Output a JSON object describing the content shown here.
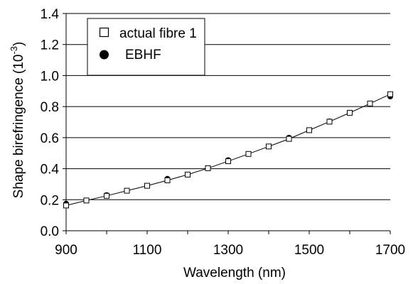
{
  "chart_data": {
    "type": "scatter",
    "title": "",
    "xlabel": "Wavelength (nm)",
    "ylabel_main": "Shape birefringence (10",
    "ylabel_exp": "-3",
    "ylabel_close": ")",
    "xlim": [
      900,
      1700
    ],
    "ylim": [
      0,
      1.4
    ],
    "xticks": [
      "900",
      "1100",
      "1300",
      "1500",
      "1700"
    ],
    "yticks": [
      "0.0",
      "0.2",
      "0.4",
      "0.6",
      "0.8",
      "1.0",
      "1.2",
      "1.4"
    ],
    "grid": "horizontal",
    "legend_position": "top-left",
    "series": [
      {
        "name": "actual fibre 1",
        "marker": "open-square",
        "line": true,
        "x": [
          900,
          950,
          1000,
          1050,
          1100,
          1150,
          1200,
          1250,
          1300,
          1350,
          1400,
          1450,
          1500,
          1550,
          1600,
          1650,
          1700
        ],
        "y": [
          0.163,
          0.195,
          0.225,
          0.258,
          0.29,
          0.325,
          0.362,
          0.403,
          0.448,
          0.495,
          0.543,
          0.592,
          0.648,
          0.703,
          0.76,
          0.82,
          0.88
        ]
      },
      {
        "name": "EBHF",
        "marker": "filled-circle",
        "line": false,
        "x": [
          900,
          1000,
          1150,
          1300,
          1450,
          1550,
          1700
        ],
        "y": [
          0.175,
          0.23,
          0.335,
          0.455,
          0.6,
          0.705,
          0.865
        ]
      }
    ]
  },
  "colors": {
    "ink": "#000000",
    "grid": "#000000",
    "background": "#ffffff"
  }
}
